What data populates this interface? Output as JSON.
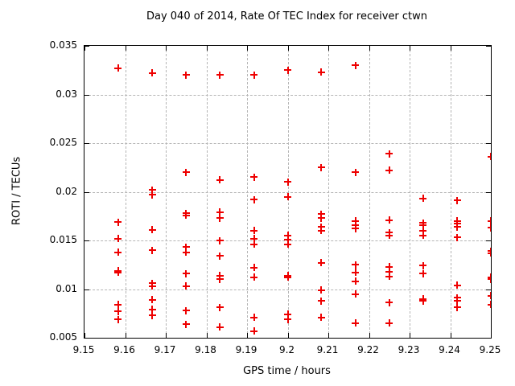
{
  "page": {
    "background": "#ffffff"
  },
  "chart_data": {
    "type": "scatter",
    "title": "Day 040 of 2014, Rate Of TEC Index for receiver ctwn",
    "xlabel": "GPS time / hours",
    "ylabel": "ROTI / TECUs",
    "xlim": [
      9.15,
      9.25
    ],
    "ylim": [
      0.005,
      0.035
    ],
    "xticks": {
      "values": [
        9.15,
        9.16,
        9.17,
        9.18,
        9.19,
        9.2,
        9.21,
        9.22,
        9.23,
        9.24,
        9.25
      ],
      "labels": [
        "9.15",
        "9.16",
        "9.17",
        "9.18",
        "9.19",
        "9.2",
        "9.21",
        "9.22",
        "9.23",
        "9.24",
        "9.25"
      ]
    },
    "yticks": {
      "values": [
        0.005,
        0.01,
        0.015,
        0.02,
        0.025,
        0.03,
        0.035
      ],
      "labels": [
        "0.005",
        "0.01",
        "0.015",
        "0.02",
        "0.025",
        "0.03",
        "0.035"
      ]
    },
    "grid": true,
    "legend": "none",
    "marker": {
      "shape": "plus",
      "color": "#ee0000"
    },
    "grid_color": "#b5b5b5",
    "axis_color": "#000000",
    "series": [
      {
        "name": "ROTI",
        "points": [
          [
            9.1583,
            0.0327
          ],
          [
            9.1583,
            0.0169
          ],
          [
            9.1583,
            0.0152
          ],
          [
            9.1583,
            0.0138
          ],
          [
            9.1583,
            0.0119
          ],
          [
            9.1583,
            0.0117
          ],
          [
            9.1583,
            0.0084
          ],
          [
            9.1583,
            0.0077
          ],
          [
            9.1583,
            0.0069
          ],
          [
            9.1667,
            0.0322
          ],
          [
            9.1667,
            0.0202
          ],
          [
            9.1667,
            0.0197
          ],
          [
            9.1667,
            0.0161
          ],
          [
            9.1667,
            0.014
          ],
          [
            9.1667,
            0.0106
          ],
          [
            9.1667,
            0.0103
          ],
          [
            9.1667,
            0.0089
          ],
          [
            9.1667,
            0.0079
          ],
          [
            9.1667,
            0.0073
          ],
          [
            9.175,
            0.032
          ],
          [
            9.175,
            0.022
          ],
          [
            9.175,
            0.0178
          ],
          [
            9.175,
            0.0176
          ],
          [
            9.175,
            0.0143
          ],
          [
            9.175,
            0.0138
          ],
          [
            9.175,
            0.0116
          ],
          [
            9.175,
            0.0103
          ],
          [
            9.175,
            0.0078
          ],
          [
            9.175,
            0.0064
          ],
          [
            9.1833,
            0.032
          ],
          [
            9.1833,
            0.0212
          ],
          [
            9.1833,
            0.0179
          ],
          [
            9.1833,
            0.0173
          ],
          [
            9.1833,
            0.015
          ],
          [
            9.1833,
            0.0134
          ],
          [
            9.1833,
            0.0114
          ],
          [
            9.1833,
            0.011
          ],
          [
            9.1833,
            0.0081
          ],
          [
            9.1833,
            0.0061
          ],
          [
            9.1917,
            0.032
          ],
          [
            9.1917,
            0.0215
          ],
          [
            9.1917,
            0.0192
          ],
          [
            9.1917,
            0.016
          ],
          [
            9.1917,
            0.0152
          ],
          [
            9.1917,
            0.0146
          ],
          [
            9.1917,
            0.0122
          ],
          [
            9.1917,
            0.0112
          ],
          [
            9.1917,
            0.0071
          ],
          [
            9.1917,
            0.0057
          ],
          [
            9.2,
            0.0325
          ],
          [
            9.2,
            0.021
          ],
          [
            9.2,
            0.0195
          ],
          [
            9.2,
            0.0155
          ],
          [
            9.2,
            0.0151
          ],
          [
            9.2,
            0.0146
          ],
          [
            9.2,
            0.0114
          ],
          [
            9.2,
            0.0112
          ],
          [
            9.2,
            0.0074
          ],
          [
            9.2,
            0.0069
          ],
          [
            9.2083,
            0.0323
          ],
          [
            9.2083,
            0.0225
          ],
          [
            9.2083,
            0.0177
          ],
          [
            9.2083,
            0.0173
          ],
          [
            9.2083,
            0.0164
          ],
          [
            9.2083,
            0.016
          ],
          [
            9.2083,
            0.0127
          ],
          [
            9.2083,
            0.0099
          ],
          [
            9.2083,
            0.0088
          ],
          [
            9.2083,
            0.0071
          ],
          [
            9.2167,
            0.033
          ],
          [
            9.2167,
            0.022
          ],
          [
            9.2167,
            0.017
          ],
          [
            9.2167,
            0.0166
          ],
          [
            9.2167,
            0.0162
          ],
          [
            9.2167,
            0.0125
          ],
          [
            9.2167,
            0.0117
          ],
          [
            9.2167,
            0.0108
          ],
          [
            9.2167,
            0.0095
          ],
          [
            9.2167,
            0.0065
          ],
          [
            9.225,
            0.0239
          ],
          [
            9.225,
            0.0222
          ],
          [
            9.225,
            0.0171
          ],
          [
            9.225,
            0.0158
          ],
          [
            9.225,
            0.0155
          ],
          [
            9.225,
            0.0123
          ],
          [
            9.225,
            0.0118
          ],
          [
            9.225,
            0.0113
          ],
          [
            9.225,
            0.0086
          ],
          [
            9.225,
            0.0065
          ],
          [
            9.2333,
            0.0193
          ],
          [
            9.2333,
            0.0168
          ],
          [
            9.2333,
            0.0166
          ],
          [
            9.2333,
            0.016
          ],
          [
            9.2333,
            0.0155
          ],
          [
            9.2333,
            0.0124
          ],
          [
            9.2333,
            0.0116
          ],
          [
            9.2333,
            0.009
          ],
          [
            9.2333,
            0.0088
          ],
          [
            9.2417,
            0.0191
          ],
          [
            9.2417,
            0.017
          ],
          [
            9.2417,
            0.0167
          ],
          [
            9.2417,
            0.0164
          ],
          [
            9.2417,
            0.0153
          ],
          [
            9.2417,
            0.0104
          ],
          [
            9.2417,
            0.0091
          ],
          [
            9.2417,
            0.0088
          ],
          [
            9.2417,
            0.0081
          ],
          [
            9.25,
            0.0236
          ],
          [
            9.25,
            0.017
          ],
          [
            9.25,
            0.0163
          ],
          [
            9.25,
            0.0139
          ],
          [
            9.25,
            0.0137
          ],
          [
            9.25,
            0.0112
          ],
          [
            9.25,
            0.011
          ],
          [
            9.25,
            0.0093
          ],
          [
            9.25,
            0.0084
          ]
        ]
      }
    ]
  }
}
